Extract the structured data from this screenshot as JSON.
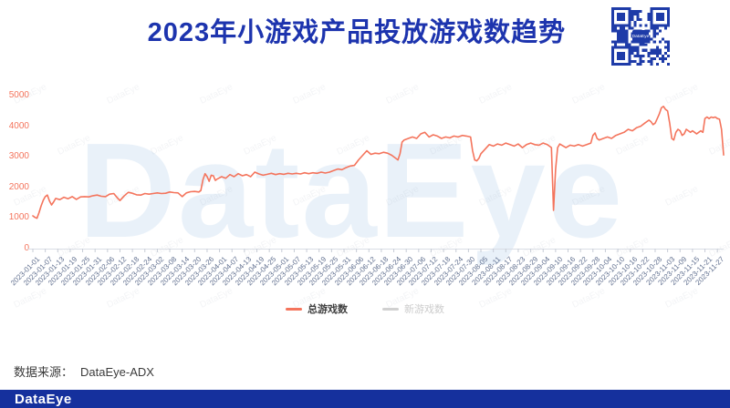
{
  "header": {
    "title": "2023年小游戏产品投放游戏数趋势"
  },
  "qr": {
    "center_label": "DataEye",
    "color": "#1e3ba8"
  },
  "watermark": {
    "big_text": "DataEye",
    "tile_text": "DataEye"
  },
  "legend": {
    "items": [
      {
        "label": "总游戏数",
        "color": "#f4745c",
        "active": true
      },
      {
        "label": "新游戏数",
        "color": "#d0d0d0",
        "active": false
      }
    ]
  },
  "footer": {
    "source_label": "数据来源：",
    "source_value": "DataEye-ADX"
  },
  "bottom_bar": {
    "logo_text": "DataEye"
  },
  "chart_data": {
    "type": "line",
    "title": "2023年小游戏产品投放游戏数趋势",
    "xlabel": "",
    "ylabel": "",
    "ylim": [
      0,
      5000
    ],
    "y_ticks": [
      0,
      1000,
      2000,
      3000,
      4000,
      5000
    ],
    "grid": false,
    "legend_position": "bottom",
    "x_tick_step_days": 6,
    "x_tick_labels": [
      "2023-01-01",
      "2023-01-07",
      "2023-01-13",
      "2023-01-19",
      "2023-01-25",
      "2023-01-31",
      "2023-02-06",
      "2023-02-12",
      "2023-02-18",
      "2023-02-24",
      "2023-03-02",
      "2023-03-08",
      "2023-03-14",
      "2023-03-20",
      "2023-03-26",
      "2023-04-01",
      "2023-04-07",
      "2023-04-13",
      "2023-04-19",
      "2023-04-25",
      "2023-05-01",
      "2023-05-07",
      "2023-05-13",
      "2023-05-19",
      "2023-05-25",
      "2023-05-31",
      "2023-06-06",
      "2023-06-12",
      "2023-06-18",
      "2023-06-24",
      "2023-06-30",
      "2023-07-06",
      "2023-07-12",
      "2023-07-18",
      "2023-07-24",
      "2023-07-30",
      "2023-08-05",
      "2023-08-11",
      "2023-08-17",
      "2023-08-23",
      "2023-08-29",
      "2023-09-04",
      "2023-09-10",
      "2023-09-16",
      "2023-09-22",
      "2023-09-28",
      "2023-10-04",
      "2023-10-10",
      "2023-10-16",
      "2023-10-22",
      "2023-10-28",
      "2023-11-03",
      "2023-11-09",
      "2023-11-15",
      "2023-11-21",
      "2023-11-27"
    ],
    "series": [
      {
        "name": "总游戏数",
        "color": "#f4745c",
        "visible": true,
        "points_format": "[day_index_from_2023-01-01, game_count]",
        "points": [
          [
            0,
            1070
          ],
          [
            1,
            1020
          ],
          [
            2,
            990
          ],
          [
            3,
            1180
          ],
          [
            4,
            1400
          ],
          [
            5,
            1580
          ],
          [
            6,
            1700
          ],
          [
            7,
            1750
          ],
          [
            8,
            1560
          ],
          [
            9,
            1430
          ],
          [
            10,
            1520
          ],
          [
            11,
            1640
          ],
          [
            13,
            1600
          ],
          [
            15,
            1680
          ],
          [
            17,
            1630
          ],
          [
            19,
            1700
          ],
          [
            21,
            1610
          ],
          [
            23,
            1690
          ],
          [
            25,
            1700
          ],
          [
            27,
            1690
          ],
          [
            29,
            1730
          ],
          [
            31,
            1750
          ],
          [
            33,
            1710
          ],
          [
            35,
            1700
          ],
          [
            37,
            1780
          ],
          [
            39,
            1800
          ],
          [
            41,
            1640
          ],
          [
            42,
            1570
          ],
          [
            44,
            1720
          ],
          [
            46,
            1840
          ],
          [
            48,
            1810
          ],
          [
            50,
            1760
          ],
          [
            52,
            1750
          ],
          [
            54,
            1800
          ],
          [
            56,
            1780
          ],
          [
            58,
            1800
          ],
          [
            60,
            1820
          ],
          [
            62,
            1800
          ],
          [
            64,
            1810
          ],
          [
            66,
            1850
          ],
          [
            68,
            1830
          ],
          [
            70,
            1820
          ],
          [
            72,
            1700
          ],
          [
            74,
            1820
          ],
          [
            76,
            1860
          ],
          [
            78,
            1870
          ],
          [
            80,
            1850
          ],
          [
            81,
            1900
          ],
          [
            82,
            2250
          ],
          [
            83,
            2450
          ],
          [
            84,
            2350
          ],
          [
            85,
            2200
          ],
          [
            86,
            2400
          ],
          [
            87,
            2380
          ],
          [
            88,
            2230
          ],
          [
            89,
            2280
          ],
          [
            91,
            2350
          ],
          [
            93,
            2300
          ],
          [
            95,
            2420
          ],
          [
            97,
            2350
          ],
          [
            99,
            2450
          ],
          [
            101,
            2380
          ],
          [
            103,
            2420
          ],
          [
            105,
            2350
          ],
          [
            107,
            2500
          ],
          [
            109,
            2440
          ],
          [
            111,
            2400
          ],
          [
            113,
            2430
          ],
          [
            115,
            2460
          ],
          [
            117,
            2420
          ],
          [
            119,
            2450
          ],
          [
            121,
            2430
          ],
          [
            123,
            2460
          ],
          [
            125,
            2440
          ],
          [
            127,
            2460
          ],
          [
            129,
            2440
          ],
          [
            131,
            2480
          ],
          [
            133,
            2450
          ],
          [
            135,
            2480
          ],
          [
            137,
            2460
          ],
          [
            139,
            2500
          ],
          [
            141,
            2470
          ],
          [
            143,
            2500
          ],
          [
            145,
            2550
          ],
          [
            147,
            2600
          ],
          [
            149,
            2580
          ],
          [
            151,
            2650
          ],
          [
            153,
            2700
          ],
          [
            155,
            2720
          ],
          [
            157,
            2900
          ],
          [
            159,
            3050
          ],
          [
            161,
            3200
          ],
          [
            163,
            3080
          ],
          [
            165,
            3120
          ],
          [
            167,
            3100
          ],
          [
            169,
            3150
          ],
          [
            171,
            3120
          ],
          [
            173,
            3050
          ],
          [
            175,
            2950
          ],
          [
            176,
            2900
          ],
          [
            177,
            3100
          ],
          [
            178,
            3480
          ],
          [
            179,
            3550
          ],
          [
            181,
            3600
          ],
          [
            183,
            3650
          ],
          [
            185,
            3600
          ],
          [
            187,
            3750
          ],
          [
            189,
            3800
          ],
          [
            191,
            3650
          ],
          [
            193,
            3720
          ],
          [
            195,
            3680
          ],
          [
            197,
            3600
          ],
          [
            199,
            3650
          ],
          [
            201,
            3620
          ],
          [
            203,
            3680
          ],
          [
            205,
            3650
          ],
          [
            207,
            3700
          ],
          [
            209,
            3680
          ],
          [
            211,
            3650
          ],
          [
            212,
            3200
          ],
          [
            213,
            2900
          ],
          [
            214,
            2870
          ],
          [
            215,
            2950
          ],
          [
            216,
            3100
          ],
          [
            218,
            3250
          ],
          [
            220,
            3400
          ],
          [
            222,
            3350
          ],
          [
            224,
            3420
          ],
          [
            226,
            3380
          ],
          [
            228,
            3450
          ],
          [
            230,
            3400
          ],
          [
            232,
            3350
          ],
          [
            234,
            3420
          ],
          [
            236,
            3300
          ],
          [
            238,
            3400
          ],
          [
            240,
            3450
          ],
          [
            242,
            3400
          ],
          [
            244,
            3380
          ],
          [
            246,
            3450
          ],
          [
            248,
            3400
          ],
          [
            249,
            3350
          ],
          [
            250,
            3300
          ],
          [
            251,
            1250
          ],
          [
            252,
            2600
          ],
          [
            253,
            3300
          ],
          [
            254,
            3420
          ],
          [
            255,
            3380
          ],
          [
            257,
            3300
          ],
          [
            259,
            3380
          ],
          [
            261,
            3350
          ],
          [
            263,
            3400
          ],
          [
            265,
            3350
          ],
          [
            267,
            3400
          ],
          [
            269,
            3450
          ],
          [
            270,
            3700
          ],
          [
            271,
            3780
          ],
          [
            272,
            3600
          ],
          [
            273,
            3550
          ],
          [
            275,
            3600
          ],
          [
            277,
            3650
          ],
          [
            279,
            3600
          ],
          [
            281,
            3700
          ],
          [
            283,
            3750
          ],
          [
            285,
            3800
          ],
          [
            287,
            3900
          ],
          [
            289,
            3850
          ],
          [
            291,
            3950
          ],
          [
            293,
            4000
          ],
          [
            295,
            4100
          ],
          [
            297,
            4200
          ],
          [
            298,
            4150
          ],
          [
            299,
            4050
          ],
          [
            300,
            4100
          ],
          [
            301,
            4250
          ],
          [
            302,
            4400
          ],
          [
            303,
            4600
          ],
          [
            304,
            4650
          ],
          [
            305,
            4550
          ],
          [
            306,
            4500
          ],
          [
            307,
            4100
          ],
          [
            308,
            3600
          ],
          [
            309,
            3550
          ],
          [
            310,
            3800
          ],
          [
            311,
            3900
          ],
          [
            312,
            3850
          ],
          [
            313,
            3700
          ],
          [
            314,
            3750
          ],
          [
            315,
            3900
          ],
          [
            316,
            3850
          ],
          [
            317,
            3800
          ],
          [
            318,
            3850
          ],
          [
            319,
            3800
          ],
          [
            320,
            3750
          ],
          [
            321,
            3800
          ],
          [
            322,
            3850
          ],
          [
            323,
            3800
          ],
          [
            324,
            4250
          ],
          [
            325,
            4300
          ],
          [
            326,
            4250
          ],
          [
            327,
            4300
          ],
          [
            328,
            4280
          ],
          [
            329,
            4300
          ],
          [
            330,
            4250
          ],
          [
            331,
            4230
          ],
          [
            332,
            3900
          ],
          [
            333,
            3060
          ]
        ]
      },
      {
        "name": "新游戏数",
        "color": "#c9c9c9",
        "visible": false,
        "points": []
      }
    ]
  }
}
